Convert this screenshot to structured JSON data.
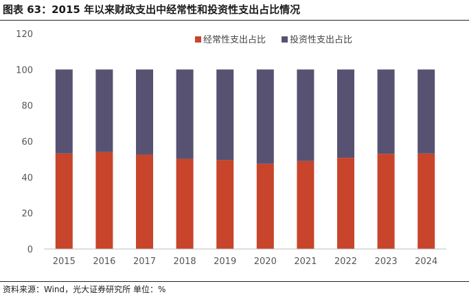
{
  "header": {
    "title": "图表 63：2015 年以来财政支出中经常性和投资性支出占比情况"
  },
  "footer": {
    "source": "资料来源：Wind，光大证券研究所  单位：%"
  },
  "colors": {
    "series_1": "#c8442a",
    "series_2": "#575272"
  },
  "chart_data": {
    "type": "bar",
    "stacked": true,
    "categories": [
      "2015",
      "2016",
      "2017",
      "2018",
      "2019",
      "2020",
      "2021",
      "2022",
      "2023",
      "2024"
    ],
    "series": [
      {
        "name": "经常性支出占比",
        "values": [
          53.2,
          54.0,
          52.5,
          50.2,
          49.5,
          47.5,
          49.0,
          50.8,
          53.0,
          53.2
        ]
      },
      {
        "name": "投资性支出占比",
        "values": [
          46.8,
          46.0,
          47.5,
          49.8,
          50.5,
          52.5,
          51.0,
          49.2,
          47.0,
          46.8
        ]
      }
    ],
    "ylim": [
      0,
      120
    ],
    "yticks": [
      "0",
      "20",
      "40",
      "60",
      "80",
      "100",
      "120"
    ],
    "grid": false,
    "legend_position": "top-right"
  }
}
